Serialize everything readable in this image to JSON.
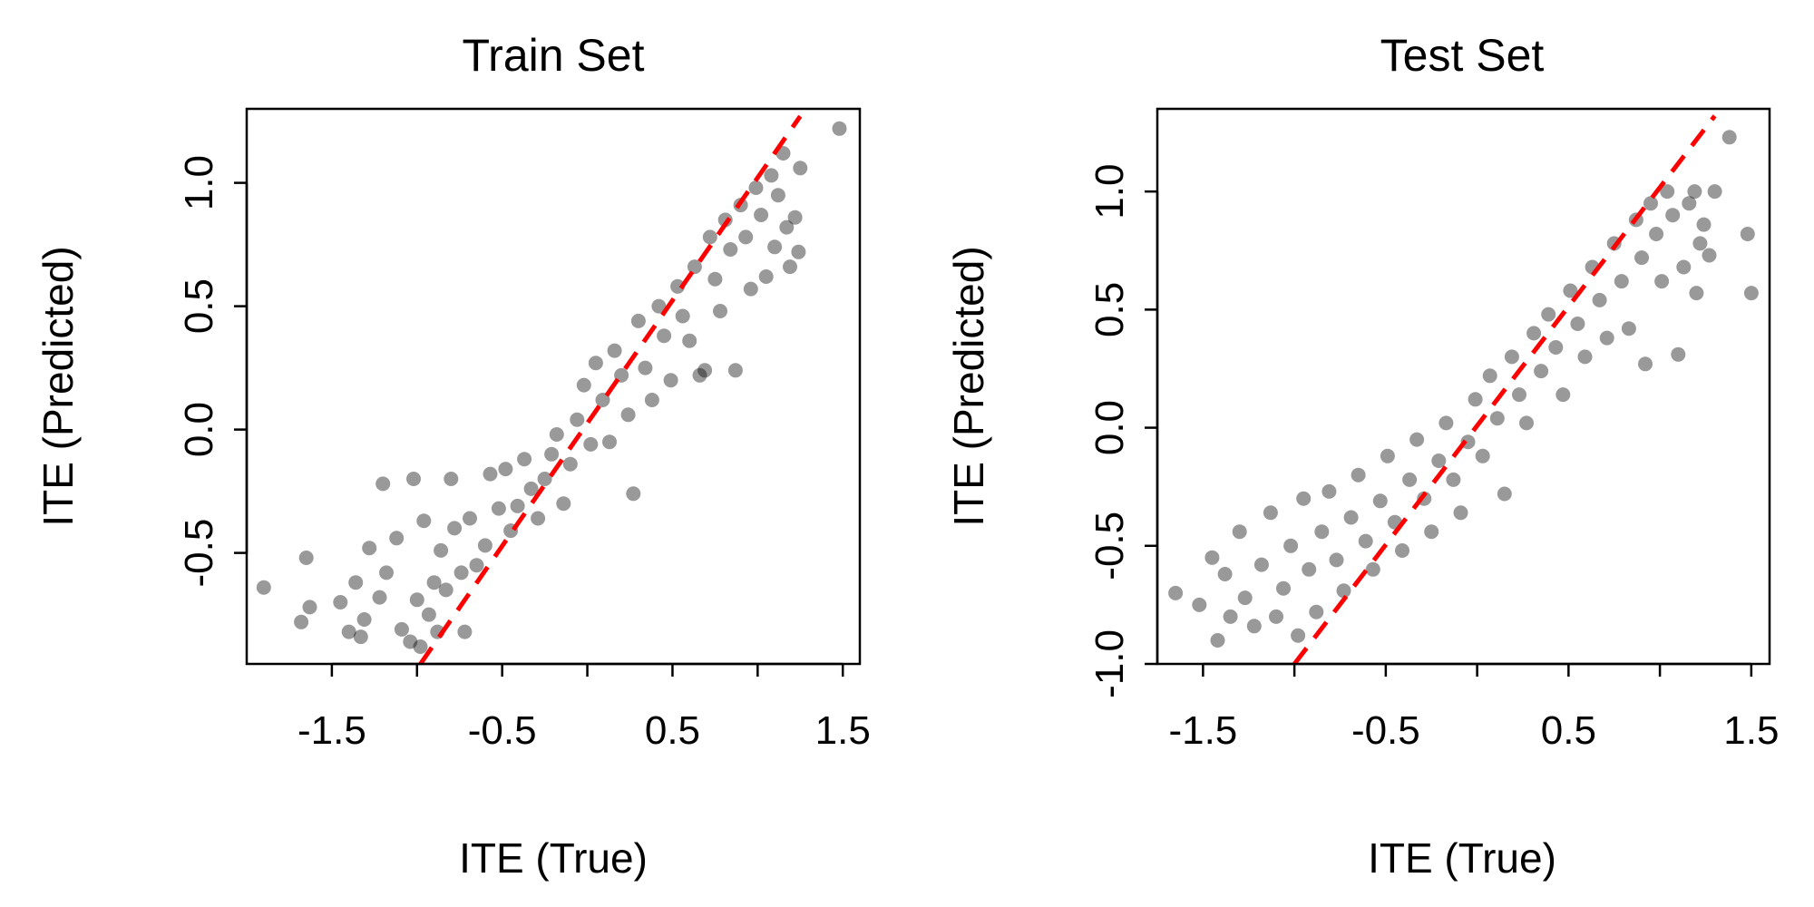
{
  "chart_data": [
    {
      "type": "scatter",
      "title": "Train Set",
      "xlabel": "ITE (True)",
      "ylabel": "ITE (Predicted)",
      "xlim": [
        -2.0,
        1.6
      ],
      "ylim": [
        -0.95,
        1.3
      ],
      "xticks": [
        -1.5,
        -1.0,
        -0.5,
        0.0,
        0.5,
        1.0,
        1.5
      ],
      "xtick_labels": [
        "-1.5",
        "",
        "-0.5",
        "",
        "0.5",
        "",
        "1.5"
      ],
      "yticks": [
        -0.5,
        0.0,
        0.5,
        1.0
      ],
      "ytick_labels": [
        "-0.5",
        "0.0",
        "0.5",
        "1.0"
      ],
      "point_color": "#000000",
      "point_opacity": 0.4,
      "grid": false,
      "reference_line": {
        "style": "dashed",
        "color": "#ff0000",
        "x": [
          -0.98,
          1.25
        ],
        "y": [
          -0.95,
          1.27
        ]
      },
      "series": [
        {
          "points": [
            [
              -1.9,
              -0.64
            ],
            [
              -1.65,
              -0.52
            ],
            [
              -1.63,
              -0.72
            ],
            [
              -1.68,
              -0.78
            ],
            [
              -1.45,
              -0.7
            ],
            [
              -1.4,
              -0.82
            ],
            [
              -1.36,
              -0.62
            ],
            [
              -1.31,
              -0.77
            ],
            [
              -1.33,
              -0.84
            ],
            [
              -1.28,
              -0.48
            ],
            [
              -1.2,
              -0.22
            ],
            [
              -1.22,
              -0.68
            ],
            [
              -1.18,
              -0.58
            ],
            [
              -1.12,
              -0.44
            ],
            [
              -1.09,
              -0.81
            ],
            [
              -1.04,
              -0.86
            ],
            [
              -1.0,
              -0.69
            ],
            [
              -0.98,
              -0.88
            ],
            [
              -1.02,
              -0.2
            ],
            [
              -0.96,
              -0.37
            ],
            [
              -0.93,
              -0.75
            ],
            [
              -0.9,
              -0.62
            ],
            [
              -0.88,
              -0.82
            ],
            [
              -0.86,
              -0.49
            ],
            [
              -0.83,
              -0.65
            ],
            [
              -0.8,
              -0.2
            ],
            [
              -0.78,
              -0.4
            ],
            [
              -0.74,
              -0.58
            ],
            [
              -0.72,
              -0.82
            ],
            [
              -0.69,
              -0.36
            ],
            [
              -0.65,
              -0.55
            ],
            [
              -0.6,
              -0.47
            ],
            [
              -0.57,
              -0.18
            ],
            [
              -0.52,
              -0.32
            ],
            [
              -0.48,
              -0.16
            ],
            [
              -0.45,
              -0.41
            ],
            [
              -0.41,
              -0.31
            ],
            [
              -0.37,
              -0.12
            ],
            [
              -0.33,
              -0.24
            ],
            [
              -0.29,
              -0.36
            ],
            [
              -0.25,
              -0.2
            ],
            [
              -0.21,
              -0.1
            ],
            [
              -0.18,
              -0.02
            ],
            [
              -0.14,
              -0.3
            ],
            [
              -0.1,
              -0.14
            ],
            [
              -0.06,
              0.04
            ],
            [
              -0.02,
              0.18
            ],
            [
              0.02,
              -0.06
            ],
            [
              0.05,
              0.27
            ],
            [
              0.09,
              0.12
            ],
            [
              0.13,
              -0.05
            ],
            [
              0.16,
              0.32
            ],
            [
              0.2,
              0.22
            ],
            [
              0.24,
              0.06
            ],
            [
              0.27,
              -0.26
            ],
            [
              0.3,
              0.44
            ],
            [
              0.34,
              0.25
            ],
            [
              0.38,
              0.12
            ],
            [
              0.42,
              0.5
            ],
            [
              0.45,
              0.38
            ],
            [
              0.49,
              0.2
            ],
            [
              0.53,
              0.58
            ],
            [
              0.56,
              0.46
            ],
            [
              0.6,
              0.36
            ],
            [
              0.63,
              0.66
            ],
            [
              0.66,
              0.22
            ],
            [
              0.69,
              0.24
            ],
            [
              0.72,
              0.78
            ],
            [
              0.75,
              0.61
            ],
            [
              0.78,
              0.48
            ],
            [
              0.81,
              0.85
            ],
            [
              0.84,
              0.73
            ],
            [
              0.87,
              0.24
            ],
            [
              0.9,
              0.91
            ],
            [
              0.93,
              0.78
            ],
            [
              0.96,
              0.57
            ],
            [
              0.99,
              0.98
            ],
            [
              1.02,
              0.87
            ],
            [
              1.05,
              0.62
            ],
            [
              1.08,
              1.03
            ],
            [
              1.1,
              0.74
            ],
            [
              1.12,
              0.95
            ],
            [
              1.15,
              1.12
            ],
            [
              1.17,
              0.82
            ],
            [
              1.19,
              0.66
            ],
            [
              1.22,
              0.86
            ],
            [
              1.24,
              0.72
            ],
            [
              1.25,
              1.06
            ],
            [
              1.48,
              1.22
            ]
          ]
        }
      ]
    },
    {
      "type": "scatter",
      "title": "Test Set",
      "xlabel": "ITE (True)",
      "ylabel": "ITE (Predicted)",
      "xlim": [
        -1.75,
        1.6
      ],
      "ylim": [
        -1.0,
        1.35
      ],
      "xticks": [
        -1.5,
        -1.0,
        -0.5,
        0.0,
        0.5,
        1.0,
        1.5
      ],
      "xtick_labels": [
        "-1.5",
        "",
        "-0.5",
        "",
        "0.5",
        "",
        "1.5"
      ],
      "yticks": [
        -1.0,
        -0.5,
        0.0,
        0.5,
        1.0
      ],
      "ytick_labels": [
        "-1.0",
        "-0.5",
        "0.0",
        "0.5",
        "1.0"
      ],
      "point_color": "#000000",
      "point_opacity": 0.4,
      "grid": false,
      "reference_line": {
        "style": "dashed",
        "color": "#ff0000",
        "x": [
          -1.0,
          1.3
        ],
        "y": [
          -1.0,
          1.32
        ]
      },
      "series": [
        {
          "points": [
            [
              -1.65,
              -0.7
            ],
            [
              -1.52,
              -0.75
            ],
            [
              -1.45,
              -0.55
            ],
            [
              -1.42,
              -0.9
            ],
            [
              -1.38,
              -0.62
            ],
            [
              -1.35,
              -0.8
            ],
            [
              -1.3,
              -0.44
            ],
            [
              -1.27,
              -0.72
            ],
            [
              -1.22,
              -0.84
            ],
            [
              -1.18,
              -0.58
            ],
            [
              -1.13,
              -0.36
            ],
            [
              -1.1,
              -0.8
            ],
            [
              -1.06,
              -0.68
            ],
            [
              -1.02,
              -0.5
            ],
            [
              -0.98,
              -0.88
            ],
            [
              -0.95,
              -0.3
            ],
            [
              -0.92,
              -0.6
            ],
            [
              -0.88,
              -0.78
            ],
            [
              -0.85,
              -0.44
            ],
            [
              -0.81,
              -0.27
            ],
            [
              -0.77,
              -0.56
            ],
            [
              -0.73,
              -0.69
            ],
            [
              -0.69,
              -0.38
            ],
            [
              -0.65,
              -0.2
            ],
            [
              -0.61,
              -0.48
            ],
            [
              -0.57,
              -0.6
            ],
            [
              -0.53,
              -0.31
            ],
            [
              -0.49,
              -0.12
            ],
            [
              -0.45,
              -0.4
            ],
            [
              -0.41,
              -0.52
            ],
            [
              -0.37,
              -0.22
            ],
            [
              -0.33,
              -0.05
            ],
            [
              -0.29,
              -0.3
            ],
            [
              -0.25,
              -0.44
            ],
            [
              -0.21,
              -0.14
            ],
            [
              -0.17,
              0.02
            ],
            [
              -0.13,
              -0.22
            ],
            [
              -0.09,
              -0.36
            ],
            [
              -0.05,
              -0.06
            ],
            [
              -0.01,
              0.12
            ],
            [
              0.03,
              -0.12
            ],
            [
              0.07,
              0.22
            ],
            [
              0.11,
              0.04
            ],
            [
              0.15,
              -0.28
            ],
            [
              0.19,
              0.3
            ],
            [
              0.23,
              0.14
            ],
            [
              0.27,
              0.02
            ],
            [
              0.31,
              0.4
            ],
            [
              0.35,
              0.24
            ],
            [
              0.39,
              0.48
            ],
            [
              0.43,
              0.34
            ],
            [
              0.47,
              0.14
            ],
            [
              0.51,
              0.58
            ],
            [
              0.55,
              0.44
            ],
            [
              0.59,
              0.3
            ],
            [
              0.63,
              0.68
            ],
            [
              0.67,
              0.54
            ],
            [
              0.71,
              0.38
            ],
            [
              0.75,
              0.78
            ],
            [
              0.79,
              0.62
            ],
            [
              0.83,
              0.42
            ],
            [
              0.87,
              0.88
            ],
            [
              0.9,
              0.72
            ],
            [
              0.92,
              0.27
            ],
            [
              0.95,
              0.95
            ],
            [
              0.98,
              0.82
            ],
            [
              1.01,
              0.62
            ],
            [
              1.04,
              1.0
            ],
            [
              1.07,
              0.9
            ],
            [
              1.1,
              0.31
            ],
            [
              1.13,
              0.68
            ],
            [
              1.16,
              0.95
            ],
            [
              1.19,
              1.0
            ],
            [
              1.2,
              0.57
            ],
            [
              1.22,
              0.78
            ],
            [
              1.24,
              0.86
            ],
            [
              1.27,
              0.73
            ],
            [
              1.3,
              1.0
            ],
            [
              1.38,
              1.23
            ],
            [
              1.48,
              0.82
            ],
            [
              1.5,
              0.57
            ]
          ]
        }
      ]
    }
  ]
}
